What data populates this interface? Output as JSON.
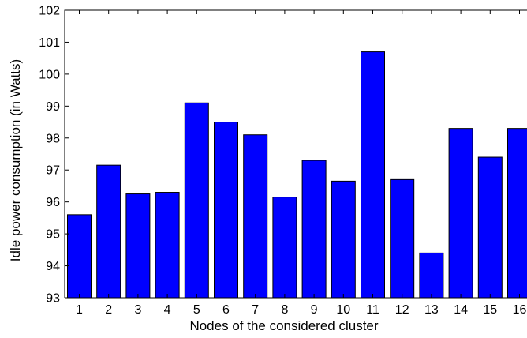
{
  "chart_data": {
    "type": "bar",
    "title": "",
    "xlabel": "Nodes of the considered cluster",
    "ylabel": "Idle power consumption (in Watts)",
    "categories": [
      "1",
      "2",
      "3",
      "4",
      "5",
      "6",
      "7",
      "8",
      "9",
      "10",
      "11",
      "12",
      "13",
      "14",
      "15",
      "16"
    ],
    "values": [
      95.6,
      97.15,
      96.25,
      96.3,
      99.1,
      98.5,
      98.1,
      96.15,
      97.3,
      96.65,
      100.7,
      96.7,
      94.4,
      98.3,
      97.4,
      98.3
    ],
    "ylim": [
      93,
      102
    ],
    "yticks": [
      "93",
      "94",
      "95",
      "96",
      "97",
      "98",
      "99",
      "100",
      "101",
      "102"
    ],
    "bar_color": "#0000ff",
    "grid": false
  }
}
